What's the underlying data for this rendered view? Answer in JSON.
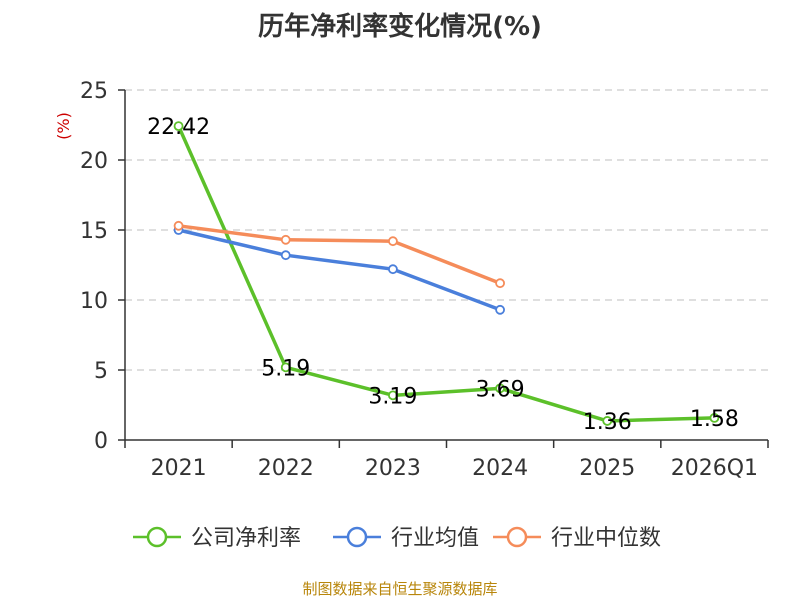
{
  "chart_data": {
    "type": "line",
    "title": "历年净利率变化情况(%)",
    "ylabel": "(%)",
    "categories": [
      "2021",
      "2022",
      "2023",
      "2024",
      "2025",
      "2026Q1"
    ],
    "ylim": [
      0,
      25
    ],
    "yticks": [
      0,
      5,
      10,
      15,
      20,
      25
    ],
    "grid": true,
    "legend_position": "bottom",
    "series": [
      {
        "name": "公司净利率",
        "color": "#5cc02a",
        "values": [
          22.42,
          5.19,
          3.19,
          3.69,
          1.36,
          1.58
        ],
        "labels": [
          "22.42",
          "5.19",
          "3.19",
          "3.69",
          "1.36",
          "1.58"
        ]
      },
      {
        "name": "行业均值",
        "color": "#4a7fdb",
        "values": [
          15.0,
          13.2,
          12.2,
          9.3,
          null,
          null
        ]
      },
      {
        "name": "行业中位数",
        "color": "#f58c5a",
        "values": [
          15.3,
          14.3,
          14.2,
          11.2,
          null,
          null
        ]
      }
    ]
  },
  "source": "制图数据来自恒生聚源数据库",
  "colors": {
    "ylabel": "#cc0000",
    "axis": "#333333",
    "grid": "#cccccc",
    "source": "#b8860b"
  }
}
